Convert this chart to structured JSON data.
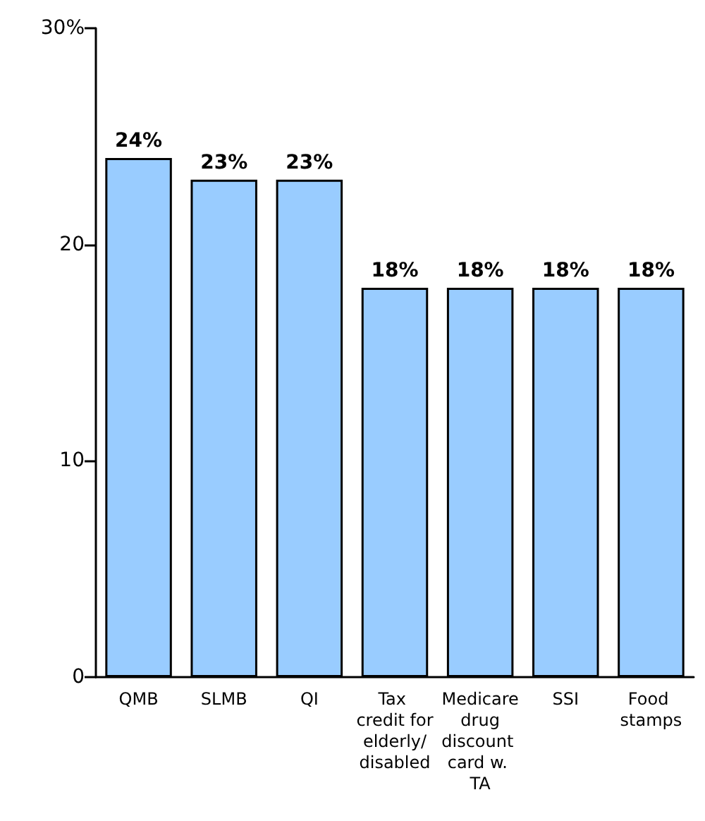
{
  "chart_data": {
    "type": "bar",
    "categories": [
      "QMB",
      "SLMB",
      "QI",
      "Tax credit for elderly/ disabled",
      "Medicare drug discount card w. TA",
      "SSI",
      "Food stamps"
    ],
    "values": [
      24,
      23,
      23,
      18,
      18,
      18,
      18
    ],
    "value_labels": [
      "24%",
      "23%",
      "23%",
      "18%",
      "18%",
      "18%",
      "18%"
    ],
    "color": "#99ccff",
    "ylim": [
      0,
      30
    ],
    "yticks": [
      0,
      10,
      20,
      {
        "value": 30,
        "label": "30%"
      }
    ],
    "grid": false
  }
}
